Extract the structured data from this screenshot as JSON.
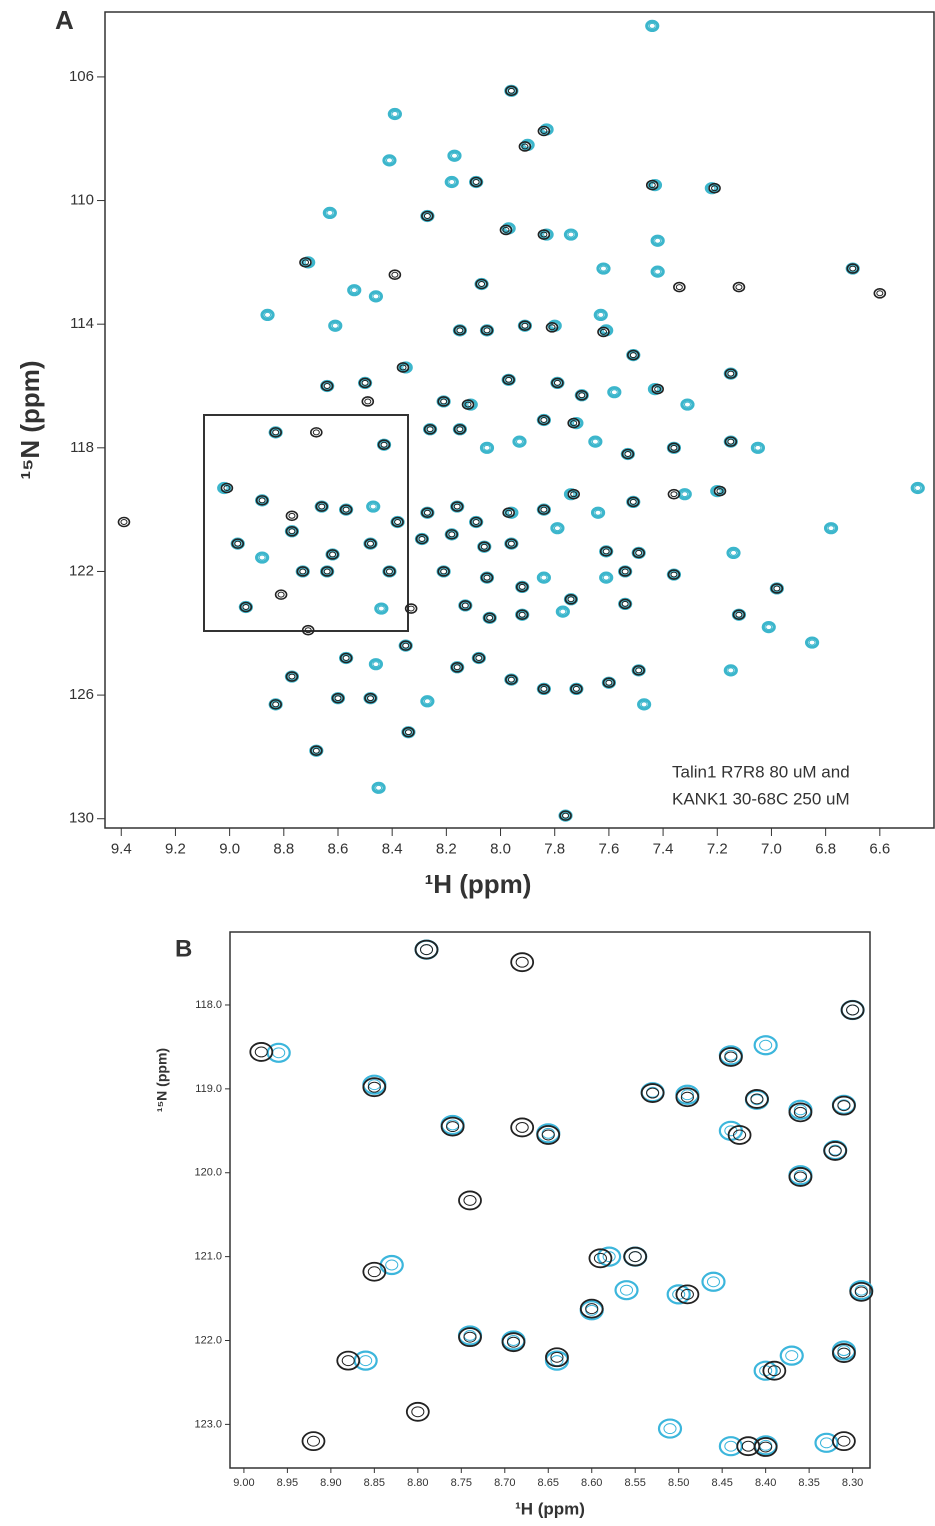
{
  "chart_data": [
    {
      "type": "scatter",
      "label": "A",
      "x_label": "¹H (ppm)",
      "y_label": "¹⁵N (ppm)",
      "annotation": [
        "Talin1 R7R8  80 uM and",
        "KANK1 30-68C 250 uM"
      ],
      "xlim": [
        9.46,
        6.4
      ],
      "ylim": [
        103.9,
        130.3
      ],
      "xticks": [
        9.4,
        9.2,
        {
          "value": 9,
          "label": "9.0"
        },
        8.8,
        8.6,
        8.4,
        8.2,
        {
          "value": 8,
          "label": "8.0"
        },
        7.8,
        7.6,
        7.4,
        7.2,
        {
          "value": 7,
          "label": "7.0"
        },
        6.8,
        6.6
      ],
      "yticks": [
        106,
        110,
        114,
        118,
        122,
        126,
        130
      ],
      "series": [
        {
          "color": "#3cb6cc",
          "x": [
            7.44,
            7.96,
            7.83,
            8.39,
            7.9,
            8.17,
            8.41,
            8.09,
            8.18,
            7.43,
            7.22,
            8.63,
            8.27,
            7.97,
            7.83,
            7.74,
            7.42,
            8.71,
            7.62,
            7.42,
            8.54,
            8.07,
            6.7,
            8.86,
            8.61,
            8.46,
            7.91,
            7.8,
            7.63,
            8.15,
            8.35,
            8.05,
            7.61,
            7.51,
            7.15,
            8.21,
            8.11,
            7.97,
            7.79,
            7.7,
            7.58,
            7.43,
            7.31,
            8.64,
            8.5,
            8.83,
            8.43,
            8.26,
            8.15,
            8.05,
            7.93,
            7.84,
            7.72,
            7.65,
            7.53,
            7.36,
            7.15,
            7.05,
            9.02,
            8.88,
            8.66,
            8.57,
            8.47,
            8.38,
            8.27,
            8.16,
            8.09,
            7.96,
            7.84,
            7.74,
            7.64,
            7.51,
            7.32,
            7.2,
            6.46,
            8.97,
            8.88,
            8.77,
            8.62,
            8.48,
            8.29,
            8.18,
            8.06,
            7.96,
            7.79,
            7.61,
            7.49,
            7.14,
            6.78,
            8.73,
            8.64,
            8.41,
            8.21,
            8.05,
            7.92,
            7.84,
            7.74,
            7.61,
            7.54,
            7.36,
            6.98,
            8.94,
            8.44,
            8.13,
            8.04,
            7.92,
            7.77,
            7.54,
            7.12,
            7.01,
            6.85,
            8.77,
            8.57,
            8.46,
            8.35,
            8.16,
            8.08,
            7.96,
            7.84,
            7.72,
            7.6,
            7.49,
            7.15,
            8.83,
            8.6,
            8.48,
            8.27,
            7.47,
            8.68,
            8.34,
            8.45,
            7.76
          ],
          "values": [
            104.35,
            106.45,
            107.7,
            107.2,
            108.2,
            108.55,
            108.7,
            109.4,
            109.4,
            109.5,
            109.6,
            110.4,
            110.5,
            110.9,
            111.1,
            111.1,
            111.3,
            112.0,
            112.2,
            112.3,
            112.9,
            112.7,
            112.2,
            113.7,
            114.05,
            113.1,
            114.05,
            114.05,
            113.7,
            114.2,
            115.4,
            114.2,
            114.2,
            115.0,
            115.6,
            116.5,
            116.6,
            115.8,
            115.9,
            116.3,
            116.2,
            116.1,
            116.6,
            116.0,
            115.9,
            117.5,
            117.9,
            117.4,
            117.4,
            118.0,
            117.8,
            117.1,
            117.2,
            117.8,
            118.2,
            118.0,
            117.8,
            118.0,
            119.3,
            119.7,
            119.9,
            120.0,
            119.9,
            120.4,
            120.1,
            119.9,
            120.4,
            120.1,
            120.0,
            119.5,
            120.1,
            119.75,
            119.5,
            119.4,
            119.3,
            121.1,
            121.55,
            120.7,
            121.45,
            121.1,
            120.95,
            120.8,
            121.2,
            121.1,
            120.6,
            121.35,
            121.4,
            121.4,
            120.6,
            122.0,
            122.0,
            122.0,
            122.0,
            122.2,
            122.5,
            122.2,
            122.9,
            122.2,
            122.0,
            122.1,
            122.55,
            123.15,
            123.2,
            123.1,
            123.5,
            123.4,
            123.3,
            123.05,
            123.4,
            123.8,
            124.3,
            125.4,
            124.8,
            125.0,
            124.4,
            125.1,
            124.8,
            125.5,
            125.8,
            125.8,
            125.6,
            125.2,
            125.2,
            126.3,
            126.1,
            126.1,
            126.2,
            126.3,
            127.8,
            127.2,
            129.0,
            129.9
          ]
        },
        {
          "color": "#222222",
          "x": [
            7.96,
            7.84,
            7.91,
            8.09,
            7.44,
            7.21,
            8.27,
            7.98,
            7.84,
            8.72,
            8.39,
            7.34,
            7.12,
            6.7,
            6.6,
            8.07,
            7.91,
            7.81,
            8.15,
            8.36,
            8.05,
            7.62,
            7.51,
            7.15,
            8.64,
            8.5,
            8.49,
            8.21,
            8.12,
            7.97,
            7.79,
            7.7,
            7.42,
            8.83,
            8.68,
            8.43,
            8.26,
            8.15,
            7.84,
            7.73,
            7.53,
            7.36,
            7.15,
            9.01,
            8.88,
            8.66,
            8.77,
            8.57,
            8.38,
            8.27,
            8.16,
            8.09,
            7.97,
            7.84,
            7.73,
            7.51,
            7.36,
            7.19,
            9.39,
            8.97,
            8.77,
            8.62,
            8.48,
            8.29,
            8.18,
            8.06,
            7.96,
            7.61,
            7.49,
            8.81,
            8.73,
            8.64,
            8.41,
            8.21,
            8.05,
            7.92,
            7.74,
            7.54,
            7.36,
            6.98,
            8.94,
            8.33,
            8.13,
            8.04,
            7.92,
            7.54,
            7.12,
            8.71,
            8.77,
            8.57,
            8.35,
            8.16,
            8.08,
            7.96,
            7.84,
            7.72,
            7.6,
            7.49,
            8.83,
            8.6,
            8.48,
            8.68,
            8.34,
            7.76
          ],
          "values": [
            106.45,
            107.75,
            108.25,
            109.4,
            109.5,
            109.6,
            110.5,
            110.95,
            111.1,
            112.0,
            112.4,
            112.8,
            112.8,
            112.2,
            113.0,
            112.7,
            114.05,
            114.1,
            114.2,
            115.4,
            114.2,
            114.25,
            115.0,
            115.6,
            116.0,
            115.9,
            116.5,
            116.5,
            116.6,
            115.8,
            115.9,
            116.3,
            116.1,
            117.5,
            117.5,
            117.9,
            117.4,
            117.4,
            117.1,
            117.2,
            118.2,
            118.0,
            117.8,
            119.3,
            119.7,
            119.9,
            120.2,
            120.0,
            120.4,
            120.1,
            119.9,
            120.4,
            120.1,
            120.0,
            119.5,
            119.75,
            119.5,
            119.4,
            120.4,
            121.1,
            120.7,
            121.45,
            121.1,
            120.95,
            120.8,
            121.2,
            121.1,
            121.35,
            121.4,
            122.75,
            122.0,
            122.0,
            122.0,
            122.0,
            122.2,
            122.5,
            122.9,
            122.0,
            122.1,
            122.55,
            123.15,
            123.2,
            123.1,
            123.5,
            123.4,
            123.05,
            123.4,
            123.9,
            125.4,
            124.8,
            124.4,
            125.1,
            124.8,
            125.5,
            125.8,
            125.8,
            125.6,
            125.2,
            126.3,
            126.1,
            126.1,
            127.8,
            127.2,
            129.9
          ]
        }
      ]
    },
    {
      "type": "scatter",
      "label": "B",
      "x_label": "¹H (ppm)",
      "y_label": "¹⁵N (ppm)",
      "xlim": [
        9.016,
        8.28
      ],
      "ylim": [
        117.13,
        123.52
      ],
      "xticks": [
        {
          "value": 9,
          "label": "9.00"
        },
        8.95,
        {
          "value": 8.9,
          "label": "8.90"
        },
        8.85,
        {
          "value": 8.8,
          "label": "8.80"
        },
        8.75,
        {
          "value": 8.7,
          "label": "8.70"
        },
        8.65,
        {
          "value": 8.6,
          "label": "8.60"
        },
        8.55,
        {
          "value": 8.5,
          "label": "8.50"
        },
        8.45,
        {
          "value": 8.4,
          "label": "8.40"
        },
        8.35,
        {
          "value": 8.3,
          "label": "8.30"
        }
      ],
      "yticks": [
        {
          "value": 118,
          "label": "118.0"
        },
        {
          "value": 119,
          "label": "119.0"
        },
        {
          "value": 120,
          "label": "120.0"
        },
        {
          "value": 121,
          "label": "121.0"
        },
        {
          "value": 122,
          "label": "122.0"
        },
        {
          "value": 123,
          "label": "123.0"
        }
      ],
      "series": [
        {
          "color": "#3cb6dc",
          "x": [
            8.79,
            8.96,
            8.85,
            8.76,
            8.65,
            8.53,
            8.49,
            8.44,
            8.41,
            8.36,
            8.31,
            8.44,
            8.4,
            8.3,
            8.36,
            8.32,
            8.58,
            8.55,
            8.83,
            8.56,
            8.5,
            8.46,
            8.6,
            8.74,
            8.69,
            8.64,
            8.86,
            8.4,
            8.37,
            8.31,
            8.44,
            8.4,
            8.29,
            8.51,
            8.33
          ],
          "values": [
            117.34,
            118.57,
            118.95,
            119.43,
            119.53,
            119.04,
            119.07,
            119.5,
            119.13,
            119.25,
            119.19,
            118.6,
            118.48,
            118.06,
            120.03,
            119.73,
            121.0,
            121.0,
            121.1,
            121.4,
            121.45,
            121.3,
            121.64,
            121.94,
            122.0,
            122.24,
            122.24,
            122.36,
            122.18,
            122.12,
            123.26,
            123.25,
            121.4,
            123.05,
            123.22
          ]
        },
        {
          "color": "#222222",
          "x": [
            8.79,
            8.68,
            8.98,
            8.85,
            8.76,
            8.68,
            8.65,
            8.74,
            8.53,
            8.49,
            8.43,
            8.41,
            8.36,
            8.31,
            8.44,
            8.3,
            8.36,
            8.32,
            8.59,
            8.55,
            8.85,
            8.49,
            8.6,
            8.74,
            8.69,
            8.64,
            8.88,
            8.39,
            8.31,
            8.8,
            8.92,
            8.42,
            8.4,
            8.31,
            8.29
          ],
          "values": [
            117.34,
            117.49,
            118.56,
            118.98,
            119.45,
            119.46,
            119.55,
            120.33,
            119.05,
            119.1,
            119.55,
            119.12,
            119.28,
            119.2,
            118.62,
            118.06,
            120.05,
            119.74,
            121.02,
            121.0,
            121.18,
            121.45,
            121.62,
            121.96,
            122.02,
            122.2,
            122.24,
            122.36,
            122.15,
            122.85,
            123.2,
            123.26,
            123.27,
            123.2,
            121.42
          ]
        }
      ]
    }
  ]
}
